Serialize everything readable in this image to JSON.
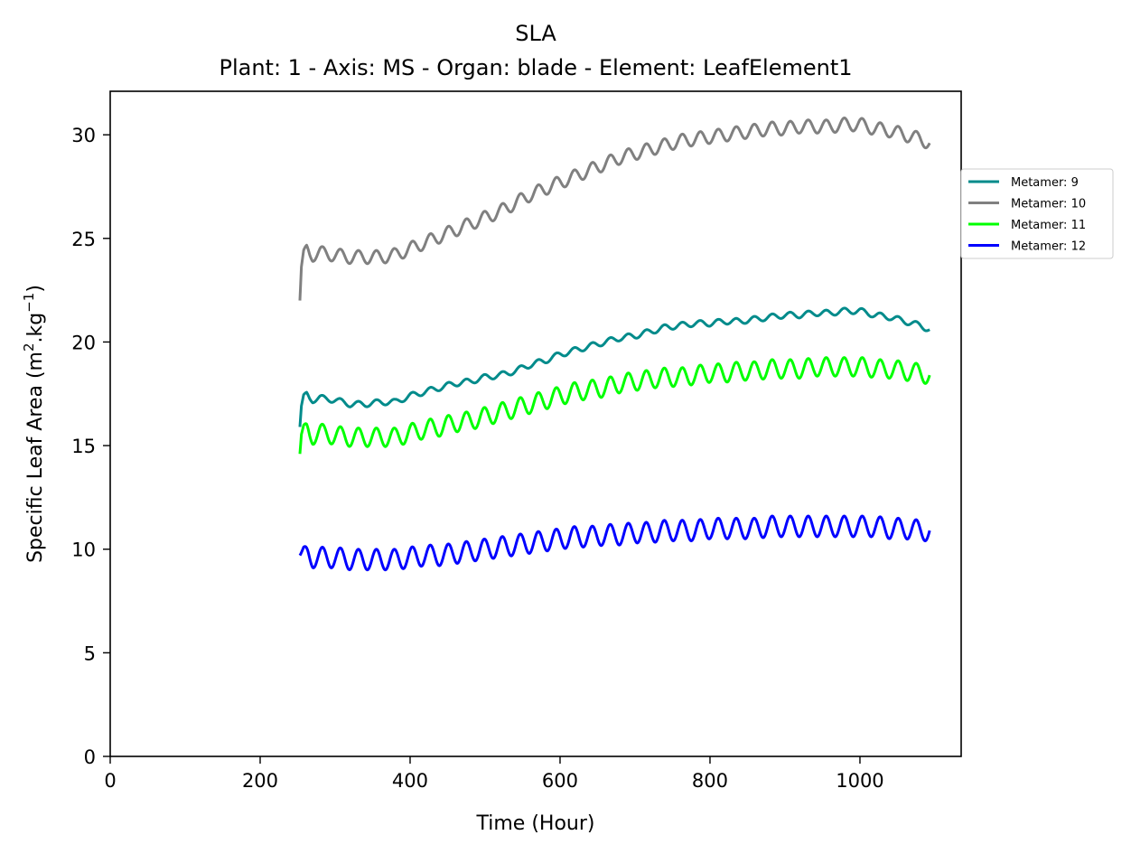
{
  "chart_data": {
    "type": "line",
    "title": "SLA",
    "subtitle": "Plant: 1 - Axis: MS - Organ: blade - Element: LeafElement1",
    "xlabel": "Time (Hour)",
    "ylabel_main": "Specific Leaf Area (m",
    "ylabel_sup1": "2",
    "ylabel_mid": ".kg",
    "ylabel_sup2": "−1",
    "ylabel_end": ")",
    "xlim": [
      0,
      1135
    ],
    "ylim": [
      0,
      32.1
    ],
    "xticks": [
      0,
      200,
      400,
      600,
      800,
      1000
    ],
    "yticks": [
      0,
      5,
      10,
      15,
      20,
      25,
      30
    ],
    "grid": false,
    "legend_position": "right, outside plot area",
    "series": [
      {
        "name": "Metamer: 9",
        "color": "#008b8b",
        "x": [
          253,
          255,
          258,
          262,
          266,
          270,
          280,
          300,
          320,
          340,
          360,
          380,
          400,
          420,
          440,
          460,
          480,
          500,
          520,
          540,
          560,
          580,
          600,
          620,
          640,
          660,
          680,
          700,
          720,
          740,
          760,
          780,
          800,
          820,
          840,
          860,
          880,
          900,
          920,
          940,
          960,
          980,
          1000,
          1010,
          1020,
          1040,
          1060,
          1080,
          1093
        ],
        "y": [
          15.9,
          16.9,
          17.4,
          17.5,
          17.3,
          17.2,
          17.3,
          17.2,
          17.0,
          17.0,
          17.1,
          17.1,
          17.4,
          17.6,
          17.8,
          18.0,
          18.1,
          18.3,
          18.4,
          18.6,
          18.9,
          19.1,
          19.4,
          19.6,
          19.8,
          20.0,
          20.2,
          20.3,
          20.5,
          20.7,
          20.8,
          20.9,
          20.9,
          21.0,
          21.0,
          21.1,
          21.2,
          21.3,
          21.3,
          21.4,
          21.4,
          21.5,
          21.5,
          21.4,
          21.3,
          21.2,
          21.0,
          20.8,
          20.6
        ],
        "wave_amp": 0.14,
        "wave_period": 24
      },
      {
        "name": "Metamer: 10",
        "color": "#808080",
        "x": [
          253,
          255,
          258,
          262,
          266,
          270,
          280,
          300,
          320,
          340,
          360,
          380,
          400,
          420,
          440,
          460,
          480,
          500,
          520,
          540,
          560,
          580,
          600,
          620,
          640,
          660,
          680,
          700,
          720,
          740,
          760,
          780,
          800,
          820,
          840,
          860,
          880,
          900,
          920,
          940,
          960,
          980,
          1000,
          1010,
          1020,
          1040,
          1060,
          1080,
          1093
        ],
        "y": [
          22.0,
          23.6,
          24.3,
          24.5,
          24.3,
          24.2,
          24.3,
          24.2,
          24.1,
          24.1,
          24.1,
          24.2,
          24.5,
          24.8,
          25.1,
          25.4,
          25.7,
          26.0,
          26.3,
          26.7,
          27.1,
          27.4,
          27.7,
          28.0,
          28.3,
          28.6,
          28.9,
          29.1,
          29.3,
          29.5,
          29.7,
          29.8,
          29.9,
          30.0,
          30.1,
          30.2,
          30.3,
          30.3,
          30.4,
          30.4,
          30.4,
          30.5,
          30.5,
          30.4,
          30.3,
          30.2,
          30.0,
          29.8,
          29.6
        ],
        "wave_amp": 0.32,
        "wave_period": 24
      },
      {
        "name": "Metamer: 11",
        "color": "#00ff00",
        "x": [
          253,
          255,
          258,
          262,
          266,
          270,
          280,
          300,
          320,
          340,
          360,
          380,
          400,
          420,
          440,
          460,
          480,
          500,
          520,
          540,
          560,
          580,
          600,
          620,
          640,
          660,
          680,
          700,
          720,
          740,
          760,
          780,
          800,
          820,
          840,
          860,
          880,
          900,
          920,
          940,
          960,
          980,
          1000,
          1010,
          1020,
          1040,
          1060,
          1080,
          1093
        ],
        "y": [
          14.6,
          15.5,
          15.8,
          15.8,
          15.6,
          15.5,
          15.6,
          15.5,
          15.4,
          15.4,
          15.4,
          15.4,
          15.6,
          15.8,
          15.9,
          16.1,
          16.2,
          16.4,
          16.6,
          16.8,
          17.0,
          17.2,
          17.4,
          17.6,
          17.7,
          17.8,
          18.0,
          18.1,
          18.2,
          18.3,
          18.3,
          18.4,
          18.5,
          18.5,
          18.6,
          18.6,
          18.7,
          18.7,
          18.7,
          18.8,
          18.8,
          18.8,
          18.8,
          18.8,
          18.7,
          18.7,
          18.6,
          18.5,
          18.4
        ],
        "wave_amp": 0.45,
        "wave_period": 24
      },
      {
        "name": "Metamer: 12",
        "color": "#0000ff",
        "x": [
          253,
          255,
          258,
          262,
          266,
          270,
          280,
          300,
          320,
          340,
          360,
          380,
          400,
          420,
          440,
          460,
          480,
          500,
          520,
          540,
          560,
          580,
          600,
          620,
          640,
          660,
          680,
          700,
          720,
          740,
          760,
          780,
          800,
          820,
          840,
          860,
          880,
          900,
          920,
          940,
          960,
          980,
          1000,
          1010,
          1020,
          1040,
          1060,
          1080,
          1093
        ],
        "y": [
          9.7,
          9.8,
          9.9,
          9.8,
          9.7,
          9.6,
          9.6,
          9.6,
          9.5,
          9.5,
          9.5,
          9.5,
          9.6,
          9.7,
          9.7,
          9.8,
          9.9,
          10.0,
          10.1,
          10.2,
          10.3,
          10.4,
          10.5,
          10.6,
          10.6,
          10.7,
          10.7,
          10.8,
          10.8,
          10.9,
          10.9,
          10.9,
          11.0,
          11.0,
          11.0,
          11.0,
          11.1,
          11.1,
          11.1,
          11.1,
          11.1,
          11.1,
          11.1,
          11.1,
          11.1,
          11.0,
          11.0,
          10.9,
          10.9
        ],
        "wave_amp": 0.5,
        "wave_period": 24
      }
    ]
  }
}
